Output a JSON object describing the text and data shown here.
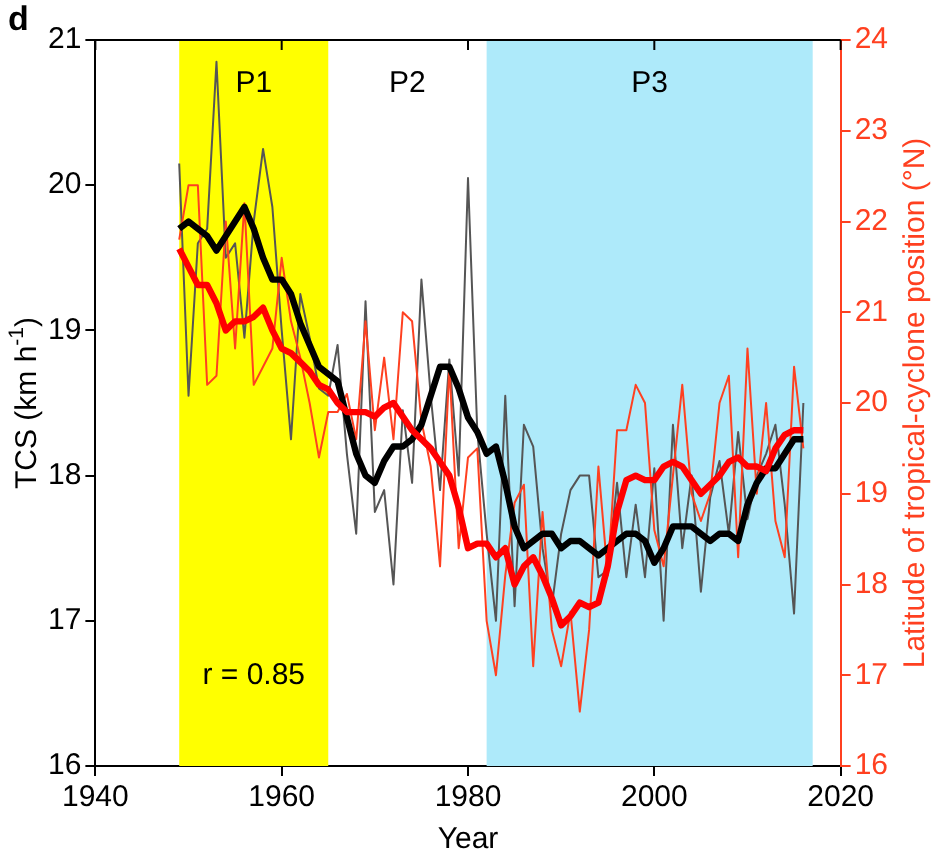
{
  "chart_data": {
    "type": "line",
    "xlabel": "Year",
    "ylabel": "TCS (km h$^{-1}$)",
    "y2label": "Latitude of tropical-cyclone position (°N)",
    "x": [
      1949,
      1950,
      1951,
      1952,
      1953,
      1954,
      1955,
      1956,
      1957,
      1958,
      1959,
      1960,
      1961,
      1962,
      1963,
      1964,
      1965,
      1966,
      1967,
      1968,
      1969,
      1970,
      1971,
      1972,
      1973,
      1974,
      1975,
      1976,
      1977,
      1978,
      1979,
      1980,
      1981,
      1982,
      1983,
      1984,
      1985,
      1986,
      1987,
      1988,
      1989,
      1990,
      1991,
      1992,
      1993,
      1994,
      1995,
      1996,
      1997,
      1998,
      1999,
      2000,
      2001,
      2002,
      2003,
      2004,
      2005,
      2006,
      2007,
      2008,
      2009,
      2010,
      2011,
      2012,
      2013,
      2014,
      2015,
      2016
    ],
    "series": [
      {
        "color": "#555555",
        "values": [
          20.15,
          18.55,
          19.6,
          19.7,
          20.85,
          19.5,
          19.6,
          18.95,
          19.75,
          20.25,
          19.85,
          19.0,
          18.25,
          19.25,
          18.95,
          18.6,
          18.55,
          18.9,
          18.15,
          17.6,
          19.2,
          17.75,
          17.9,
          17.25,
          18.45,
          17.95,
          19.35,
          18.55,
          17.9,
          18.8,
          18.0,
          20.05,
          18.3,
          17.6,
          17.0,
          18.55,
          17.1,
          18.35,
          18.2,
          17.5,
          17.1,
          17.6,
          17.9,
          18.0,
          18.0,
          17.3,
          17.35,
          17.95,
          17.3,
          17.8,
          17.3,
          18.05,
          17.0,
          18.35,
          17.5,
          18.0,
          17.2,
          17.85,
          18.1,
          17.6,
          18.3,
          17.7,
          18.0,
          18.15,
          18.35,
          17.8,
          17.05,
          18.5
        ]
      },
      {
        "color": "#ff4020",
        "axis": "y2",
        "values": [
          21.8,
          22.4,
          22.4,
          20.2,
          20.3,
          22.0,
          20.6,
          22.2,
          20.2,
          20.4,
          20.6,
          21.6,
          20.9,
          20.5,
          20.0,
          19.4,
          19.9,
          19.9,
          20.1,
          19.6,
          20.9,
          19.7,
          20.5,
          19.6,
          21.0,
          20.9,
          19.8,
          19.3,
          18.2,
          20.4,
          18.4,
          19.4,
          19.5,
          17.6,
          17.0,
          18.1,
          18.9,
          19.1,
          17.1,
          18.8,
          17.5,
          17.1,
          17.7,
          16.6,
          17.5,
          19.3,
          18.1,
          19.7,
          19.7,
          20.2,
          20.0,
          18.6,
          18.2,
          19.2,
          20.2,
          19.0,
          18.7,
          19.0,
          20.0,
          20.3,
          18.3,
          20.6,
          19.0,
          20.0,
          18.7,
          18.3,
          20.4,
          19.5
        ]
      },
      {
        "color": "#000000",
        "values": [
          19.7,
          19.75,
          19.7,
          19.65,
          19.55,
          19.65,
          19.75,
          19.85,
          19.7,
          19.5,
          19.35,
          19.35,
          19.25,
          19.05,
          18.9,
          18.75,
          18.7,
          18.65,
          18.4,
          18.15,
          18.0,
          17.95,
          18.1,
          18.2,
          18.2,
          18.25,
          18.35,
          18.55,
          18.75,
          18.75,
          18.6,
          18.4,
          18.3,
          18.15,
          18.2,
          17.95,
          17.65,
          17.5,
          17.55,
          17.6,
          17.6,
          17.5,
          17.55,
          17.55,
          17.5,
          17.45,
          17.5,
          17.55,
          17.6,
          17.6,
          17.55,
          17.4,
          17.5,
          17.65,
          17.65,
          17.65,
          17.6,
          17.55,
          17.6,
          17.6,
          17.55,
          17.8,
          17.95,
          18.05,
          18.05,
          18.15,
          18.25,
          18.25
        ]
      },
      {
        "color": "#ff0000",
        "axis": "y2",
        "values": [
          21.7,
          21.5,
          21.3,
          21.3,
          21.1,
          20.8,
          20.9,
          20.9,
          20.95,
          21.05,
          20.8,
          20.6,
          20.55,
          20.45,
          20.35,
          20.2,
          20.15,
          20.0,
          19.9,
          19.9,
          19.9,
          19.85,
          19.95,
          20.0,
          19.85,
          19.7,
          19.6,
          19.5,
          19.35,
          19.2,
          18.85,
          18.4,
          18.45,
          18.45,
          18.3,
          18.4,
          18.0,
          18.2,
          18.3,
          18.1,
          17.85,
          17.55,
          17.65,
          17.8,
          17.75,
          17.8,
          18.2,
          18.8,
          19.15,
          19.2,
          19.15,
          19.15,
          19.3,
          19.35,
          19.3,
          19.15,
          19.0,
          19.1,
          19.2,
          19.35,
          19.4,
          19.3,
          19.3,
          19.25,
          19.5,
          19.65,
          19.7,
          19.7
        ]
      }
    ],
    "xlim": [
      1940,
      2020
    ],
    "xticks": [
      1940,
      1960,
      1980,
      2000,
      2020
    ],
    "ylim": [
      16,
      21
    ],
    "yticks": [
      16,
      17,
      18,
      19,
      20,
      21
    ],
    "y2lim": [
      16,
      24
    ],
    "y2ticks": [
      16,
      17,
      18,
      19,
      20,
      21,
      22,
      23,
      24
    ],
    "bands": [
      {
        "axis": "x",
        "from": 1949,
        "to": 1965,
        "label": "P1",
        "color": "#ffff00"
      },
      {
        "axis": "x",
        "from": 1982,
        "to": 2017,
        "label": "P3",
        "color": "#aeeafa"
      }
    ],
    "annotations": [
      "d",
      "r = 0.85",
      "P2"
    ],
    "marker": "none",
    "line_style": "solid",
    "grid": false,
    "legend": false
  }
}
